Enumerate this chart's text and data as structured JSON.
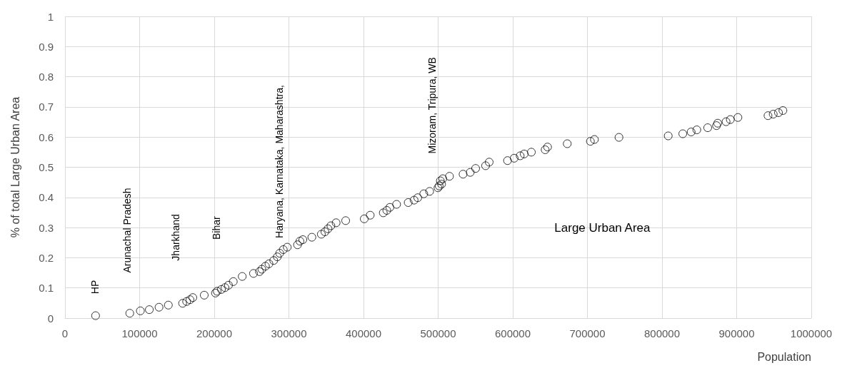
{
  "chart_data": {
    "type": "scatter",
    "xlabel": "Population",
    "ylabel": "% of total Large Urban Area",
    "xlim": [
      0,
      1000000
    ],
    "xticks": [
      0,
      100000,
      200000,
      300000,
      400000,
      500000,
      600000,
      700000,
      800000,
      900000,
      1000000
    ],
    "ylim": [
      0,
      1
    ],
    "yticks": [
      0,
      0.1,
      0.2,
      0.3,
      0.4,
      0.5,
      0.6,
      0.7,
      0.8,
      0.9,
      1
    ],
    "grid": true,
    "marker": "circle",
    "annotations": [
      "HP",
      "Arunachal Pradesh",
      "Jharkhand",
      "Bihar",
      "Haryana, Karnataka, Maharashtra,",
      "Mizoram, Tripura, WB",
      "Large Urban Area"
    ],
    "series": [
      {
        "color": "#000000",
        "x": [
          41000,
          86800,
          101000,
          113000,
          126000,
          138500,
          157600,
          163000,
          167500,
          171300,
          186600,
          201600,
          203800,
          209600,
          214400,
          219100,
          225500,
          237500,
          252600,
          260600,
          263800,
          268600,
          273300,
          279700,
          284500,
          287700,
          292500,
          297800,
          311600,
          314800,
          318700,
          330800,
          343500,
          348300,
          352400,
          356300,
          363300,
          376100,
          401000,
          409000,
          426500,
          431200,
          435400,
          444300,
          459900,
          467800,
          472700,
          480700,
          488600,
          499800,
          501400,
          503000,
          504600,
          506200,
          515200,
          533400,
          543000,
          550200,
          563600,
          568400,
          593000,
          601900,
          609900,
          615300,
          624900,
          643400,
          646600,
          673000,
          704000,
          709400,
          742300,
          808300,
          827800,
          839000,
          846600,
          861200,
          873000,
          874600,
          885800,
          891500,
          901700,
          942000,
          949000,
          956000,
          962000
        ],
        "values": [
          0.008,
          0.016,
          0.024,
          0.028,
          0.036,
          0.043,
          0.049,
          0.055,
          0.061,
          0.068,
          0.076,
          0.083,
          0.089,
          0.095,
          0.101,
          0.109,
          0.121,
          0.138,
          0.148,
          0.154,
          0.162,
          0.172,
          0.18,
          0.191,
          0.203,
          0.215,
          0.227,
          0.235,
          0.243,
          0.255,
          0.26,
          0.268,
          0.278,
          0.286,
          0.296,
          0.306,
          0.316,
          0.323,
          0.329,
          0.341,
          0.349,
          0.357,
          0.367,
          0.377,
          0.383,
          0.391,
          0.399,
          0.412,
          0.42,
          0.432,
          0.438,
          0.455,
          0.444,
          0.462,
          0.47,
          0.477,
          0.483,
          0.496,
          0.505,
          0.517,
          0.522,
          0.53,
          0.538,
          0.544,
          0.55,
          0.558,
          0.567,
          0.578,
          0.586,
          0.592,
          0.599,
          0.604,
          0.611,
          0.617,
          0.624,
          0.631,
          0.638,
          0.646,
          0.651,
          0.658,
          0.665,
          0.671,
          0.676,
          0.681,
          0.688
        ]
      }
    ]
  }
}
